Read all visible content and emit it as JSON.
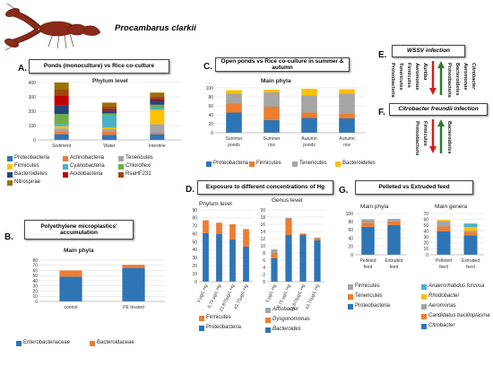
{
  "header": {
    "species": "Procambarus clarkii"
  },
  "colors": {
    "blue": "#2e75b6",
    "orange": "#ed7d31",
    "gray": "#a5a5a5",
    "yellow": "#ffc000",
    "teal": "#4cb1c7",
    "green": "#70ad47",
    "darkblue": "#264478",
    "red": "#c00000",
    "brown": "#9e480e",
    "olive": "#997300",
    "arrow_red": "#d0201c",
    "arrow_green": "#2e7d32"
  },
  "panelA": {
    "letter": "A.",
    "title": "Ponds (monoculture) vs Rice co-culture",
    "subtitle": "Phylum level",
    "legend": [
      "Proteobacteria",
      "Actinobacteria",
      "Tenericutes",
      "Firmicutes",
      "Cyanobacteria",
      "Chloroflexi",
      "Bacteroidetes",
      "Acidobacteria",
      "RsaHF231",
      "Nitrospirae"
    ]
  },
  "panelB": {
    "letter": "B.",
    "title": "Polyethylene microplastics' accumulation",
    "subtitle": "Main phyla",
    "legend": [
      "Enterobacteriaceae",
      "Bacteroidaceae"
    ]
  },
  "panelC": {
    "letter": "C.",
    "title": "Open ponds vs Rice co-culture in summer & autumn",
    "subtitle": "Main phyla",
    "legend": [
      "Proteobacteria",
      "Firmicutes",
      "Tenericutes",
      "Bacteroidetes"
    ]
  },
  "panelD": {
    "letter": "D.",
    "title": "Exposure to different concentrations of Hg",
    "left_title": "Phylum level",
    "right_title": "Genus level",
    "left_legend": [
      "Firmicutes",
      "Proteobacteria"
    ],
    "right_legend": [
      "Arcobacter",
      "Dysgonomonas",
      "Bacteroides"
    ]
  },
  "panelE": {
    "letter": "E.",
    "title": "WSSV infection",
    "down_labels": [
      "Proteobacteria",
      "Tenericutes",
      "Firmicutes",
      "Aeromonas",
      "Aurtiba"
    ],
    "up_labels": [
      "Proteobacteria",
      "Bacteroidetes",
      "Aeromonas",
      "Citrobacter"
    ]
  },
  "panelF": {
    "letter": "F.",
    "title": "Citrobacter freundii infection",
    "down_labels": [
      "Proteobacteria",
      "Firmicutes"
    ],
    "up_labels": [
      "Bacteroidetes"
    ]
  },
  "panelG": {
    "letter": "G.",
    "title": "Pelleted vs Extruded feed",
    "left_title": "Main phyla",
    "right_title": "Main genera",
    "left_legend": [
      "Firmicutes",
      "Tenericutes",
      "Proteobacteria"
    ],
    "right_legend": [
      "Anaerorhabdus furcosa",
      "Rhodobacter",
      "Aeromonas",
      "Candidatus bacilloplasma",
      "Citrobacter"
    ]
  },
  "chart_data": [
    {
      "id": "A",
      "type": "bar",
      "stacked": true,
      "categories": [
        "Sediment",
        "Water",
        "Intestine"
      ],
      "ylim": [
        0,
        400
      ],
      "yticks": [
        0,
        100,
        200,
        300,
        400
      ],
      "series": [
        {
          "name": "Proteobacteria",
          "color": "#2e75b6",
          "values": [
            40,
            35,
            40
          ]
        },
        {
          "name": "Actinobacteria",
          "color": "#ed7d31",
          "values": [
            20,
            25,
            10
          ]
        },
        {
          "name": "Tenericutes",
          "color": "#a5a5a5",
          "values": [
            20,
            15,
            60
          ]
        },
        {
          "name": "Firmicutes",
          "color": "#ffc000",
          "values": [
            15,
            10,
            100
          ]
        },
        {
          "name": "Cyanobacteria",
          "color": "#4cb1c7",
          "values": [
            15,
            90,
            15
          ]
        },
        {
          "name": "Chloroflexi",
          "color": "#70ad47",
          "values": [
            70,
            10,
            20
          ]
        },
        {
          "name": "Bacteroidetes",
          "color": "#264478",
          "values": [
            60,
            20,
            30
          ]
        },
        {
          "name": "Acidobacteria",
          "color": "#c00000",
          "values": [
            70,
            10,
            10
          ]
        },
        {
          "name": "RsaHF231",
          "color": "#9e480e",
          "values": [
            40,
            20,
            20
          ]
        },
        {
          "name": "Nitrospirae",
          "color": "#997300",
          "values": [
            50,
            25,
            25
          ]
        }
      ]
    },
    {
      "id": "B",
      "type": "bar",
      "stacked": true,
      "categories": [
        "control",
        "PE treated"
      ],
      "ylim": [
        0,
        80
      ],
      "yticks": [
        0,
        10,
        20,
        30,
        40,
        50,
        60,
        70,
        80
      ],
      "series": [
        {
          "name": "Enterobacteriaceae",
          "color": "#2e75b6",
          "values": [
            48,
            65
          ]
        },
        {
          "name": "Bacteroidaceae",
          "color": "#ed7d31",
          "values": [
            12,
            6
          ]
        }
      ]
    },
    {
      "id": "C",
      "type": "bar",
      "stacked": true,
      "categories": [
        "Summer ponds",
        "Summer rice",
        "Autumn ponds",
        "Autumn rice"
      ],
      "ylim": [
        0,
        100
      ],
      "yticks": [
        0,
        20,
        40,
        60,
        80,
        100
      ],
      "series": [
        {
          "name": "Proteobacteria",
          "color": "#2e75b6",
          "values": [
            45,
            28,
            33,
            32
          ]
        },
        {
          "name": "Firmicutes",
          "color": "#ed7d31",
          "values": [
            20,
            30,
            12,
            10
          ]
        },
        {
          "name": "Tenericutes",
          "color": "#a5a5a5",
          "values": [
            22,
            32,
            38,
            45
          ]
        },
        {
          "name": "Bacteroidetes",
          "color": "#ffc000",
          "values": [
            8,
            6,
            15,
            10
          ]
        }
      ]
    },
    {
      "id": "D-phylum",
      "type": "bar",
      "stacked": true,
      "categories": [
        "0 μg/L Hg",
        "8.75 μg/L Hg",
        "21.875μg/L Hg",
        "43.75μg/L Hg"
      ],
      "ylim": [
        0,
        90
      ],
      "yticks": [
        0,
        10,
        20,
        30,
        40,
        50,
        60,
        70,
        80,
        90
      ],
      "series": [
        {
          "name": "Proteobacteria",
          "color": "#2e75b6",
          "values": [
            61,
            60,
            53,
            44
          ]
        },
        {
          "name": "Firmicutes",
          "color": "#ed7d31",
          "values": [
            16,
            14,
            19,
            22
          ]
        }
      ]
    },
    {
      "id": "D-genus",
      "type": "bar",
      "stacked": true,
      "categories": [
        "0 μg/L Hg",
        "8.75 μg/L Hg",
        "21.875μg/L Hg",
        "43.75μg/L Hg"
      ],
      "ylim": [
        0,
        20
      ],
      "yticks": [
        0,
        2,
        4,
        6,
        8,
        10,
        12,
        14,
        16,
        18,
        20
      ],
      "series": [
        {
          "name": "Bacteroides",
          "color": "#2e75b6",
          "values": [
            6.5,
            13,
            13,
            11.5
          ]
        },
        {
          "name": "Dysgonomonas",
          "color": "#ed7d31",
          "values": [
            1.5,
            4.5,
            0.3,
            0.6
          ]
        },
        {
          "name": "Arcobacter",
          "color": "#a5a5a5",
          "values": [
            1,
            0.3,
            0.2,
            0.2
          ]
        }
      ]
    },
    {
      "id": "G-phyla",
      "type": "bar",
      "stacked": true,
      "categories": [
        "Pelleted feed",
        "Extruded feed"
      ],
      "ylim": [
        0,
        100
      ],
      "yticks": [
        0,
        20,
        40,
        60,
        80,
        100
      ],
      "series": [
        {
          "name": "Proteobacteria",
          "color": "#2e75b6",
          "values": [
            68,
            72
          ]
        },
        {
          "name": "Tenericutes",
          "color": "#ed7d31",
          "values": [
            10,
            9
          ]
        },
        {
          "name": "Firmicutes",
          "color": "#a5a5a5",
          "values": [
            8,
            6
          ]
        }
      ]
    },
    {
      "id": "G-genera",
      "type": "bar",
      "stacked": true,
      "categories": [
        "Pelleted feed",
        "Extruded feed"
      ],
      "ylim": [
        0,
        70
      ],
      "yticks": [
        0,
        10,
        20,
        30,
        40,
        50,
        60,
        70
      ],
      "series": [
        {
          "name": "Citrobacter",
          "color": "#2e75b6",
          "values": [
            40,
            33
          ]
        },
        {
          "name": "Candidatus bacilloplasma",
          "color": "#ed7d31",
          "values": [
            8,
            5
          ]
        },
        {
          "name": "Aeromonas",
          "color": "#a5a5a5",
          "values": [
            9,
            3
          ]
        },
        {
          "name": "Rhodobacter",
          "color": "#ffc000",
          "values": [
            2,
            6
          ]
        },
        {
          "name": "Anaerorhabdus furcosa",
          "color": "#4cb1c7",
          "values": [
            0,
            6
          ]
        }
      ]
    }
  ]
}
